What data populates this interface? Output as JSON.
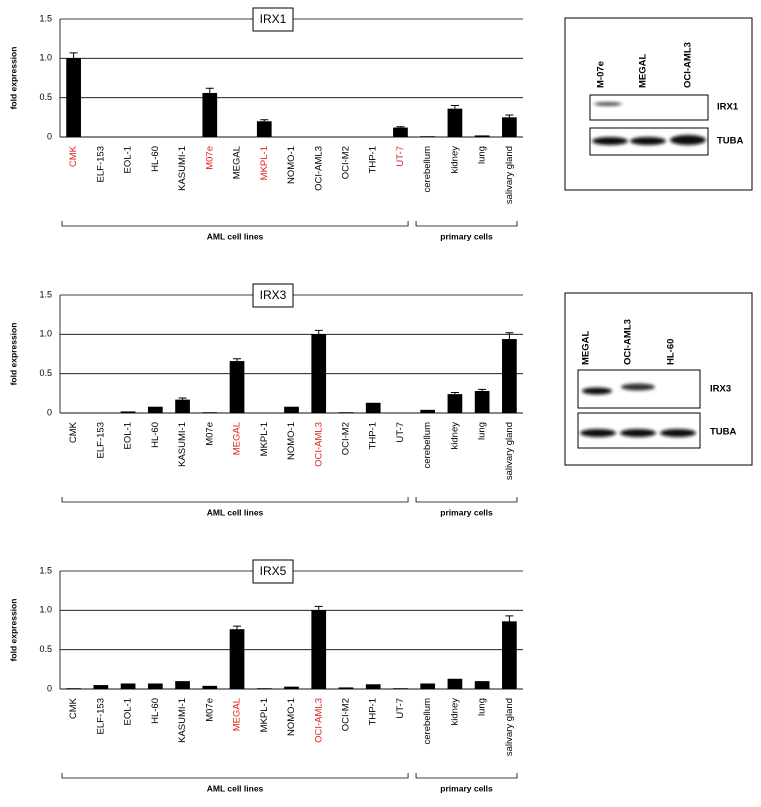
{
  "chart_data": [
    {
      "type": "bar",
      "title": "IRX1",
      "y_label": "fold expression",
      "categories": [
        "CMK",
        "ELF-153",
        "EOL-1",
        "HL-60",
        "KASUMI-1",
        "M07e",
        "MEGAL",
        "MKPL-1",
        "NOMO-1",
        "OCI-AML3",
        "OCI-M2",
        "THP-1",
        "UT-7",
        "cerebellum",
        "kidney",
        "lung",
        "salivary gland"
      ],
      "category_label_colors": [
        "#e0201c",
        "#000000",
        "#000000",
        "#000000",
        "#000000",
        "#e0201c",
        "#000000",
        "#e0201c",
        "#000000",
        "#000000",
        "#000000",
        "#000000",
        "#e0201c",
        "#000000",
        "#000000",
        "#000000",
        "#000000"
      ],
      "values": [
        1.0,
        0,
        0,
        0,
        0,
        0.56,
        0,
        0.2,
        0,
        0,
        0,
        0,
        0.12,
        0.01,
        0.36,
        0.02,
        0.25
      ],
      "errors": [
        0.07,
        null,
        null,
        null,
        null,
        0.06,
        null,
        0.02,
        null,
        null,
        null,
        null,
        0.01,
        null,
        0.04,
        null,
        0.03
      ],
      "groups": [
        {
          "label": "AML cell lines",
          "count": 13
        },
        {
          "label": "primary cells",
          "count": 4
        }
      ],
      "color": "#000000",
      "ylim": [
        0,
        1.5
      ],
      "yticks": [
        0,
        0.5,
        {
          "value": 1,
          "label": "1.0"
        },
        1.5
      ],
      "grid": true
    },
    {
      "type": "bar",
      "title": "IRX3",
      "y_label": "fold expression",
      "categories": [
        "CMK",
        "ELF-153",
        "EOL-1",
        "HL-60",
        "KASUMI-1",
        "M07e",
        "MEGAL",
        "MKPL-1",
        "NOMO-1",
        "OCI-AML3",
        "OCI-M2",
        "THP-1",
        "UT-7",
        "cerebellum",
        "kidney",
        "lung",
        "salivary gland"
      ],
      "category_label_colors": [
        "#000000",
        "#000000",
        "#000000",
        "#000000",
        "#000000",
        "#000000",
        "#e0201c",
        "#000000",
        "#000000",
        "#e0201c",
        "#000000",
        "#000000",
        "#000000",
        "#000000",
        "#000000",
        "#000000",
        "#000000"
      ],
      "values": [
        0,
        0,
        0.02,
        0.08,
        0.17,
        0.01,
        0.66,
        0,
        0.08,
        1.0,
        0.01,
        0.13,
        0,
        0.04,
        0.24,
        0.28,
        0.94
      ],
      "errors": [
        null,
        null,
        null,
        null,
        0.02,
        null,
        0.03,
        null,
        null,
        0.05,
        null,
        null,
        null,
        null,
        0.02,
        0.02,
        0.08
      ],
      "groups": [
        {
          "label": "AML cell lines",
          "count": 13
        },
        {
          "label": "primary cells",
          "count": 4
        }
      ],
      "color": "#000000",
      "ylim": [
        0,
        1.5
      ],
      "yticks": [
        0,
        0.5,
        {
          "value": 1,
          "label": "1.0"
        },
        1.5
      ],
      "grid": true
    },
    {
      "type": "bar",
      "title": "IRX5",
      "y_label": "fold expression",
      "categories": [
        "CMK",
        "ELF-153",
        "EOL-1",
        "HL-60",
        "KASUMI-1",
        "M07e",
        "MEGAL",
        "MKPL-1",
        "NOMO-1",
        "OCI-AML3",
        "OCI-M2",
        "THP-1",
        "UT-7",
        "cerebellum",
        "kidney",
        "lung",
        "salivary gland"
      ],
      "category_label_colors": [
        "#000000",
        "#000000",
        "#000000",
        "#000000",
        "#000000",
        "#000000",
        "#e0201c",
        "#000000",
        "#000000",
        "#e0201c",
        "#000000",
        "#000000",
        "#000000",
        "#000000",
        "#000000",
        "#000000",
        "#000000"
      ],
      "values": [
        0.01,
        0.05,
        0.07,
        0.07,
        0.1,
        0.04,
        0.76,
        0.01,
        0.03,
        1.0,
        0.02,
        0.06,
        0.01,
        0.07,
        0.13,
        0.1,
        0.86
      ],
      "errors": [
        null,
        null,
        null,
        null,
        null,
        null,
        0.04,
        null,
        null,
        0.05,
        null,
        null,
        null,
        null,
        null,
        null,
        0.07
      ],
      "groups": [
        {
          "label": "AML cell lines",
          "count": 13
        },
        {
          "label": "primary cells",
          "count": 4
        }
      ],
      "color": "#000000",
      "ylim": [
        0,
        1.5
      ],
      "yticks": [
        0,
        0.5,
        {
          "value": 1,
          "label": "1.0"
        },
        1.5
      ],
      "grid": true
    }
  ],
  "blots": [
    {
      "lanes": [
        "M-07e",
        "MEGAL",
        "OCI-AML3"
      ],
      "rows": [
        "IRX1",
        "TUBA"
      ]
    },
    {
      "lanes": [
        "MEGAL",
        "OCI-AML3",
        "HL-60"
      ],
      "rows": [
        "IRX3",
        "TUBA"
      ]
    }
  ]
}
